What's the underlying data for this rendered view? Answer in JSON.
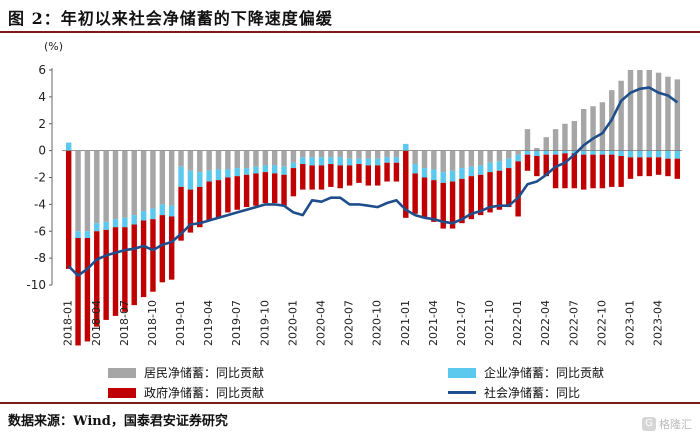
{
  "title": "图 2：年初以来社会净储蓄的下降速度偏缓",
  "source": "数据来源：Wind，国泰君安证券研究",
  "watermark": "格隆汇",
  "colors": {
    "household": "#a6a6a6",
    "enterprise": "#5bc8ee",
    "government": "#c00000",
    "social": "#1f4e8c"
  },
  "chart_data": {
    "type": "bar",
    "ylabel": "(%)",
    "ylim": [
      -10,
      6
    ],
    "yticks": [
      6,
      4,
      2,
      0,
      -2,
      -4,
      -6,
      -8,
      -10
    ],
    "xticklabels": [
      "2018-01",
      "2018-04",
      "2018-07",
      "2018-10",
      "2019-01",
      "2019-04",
      "2019-07",
      "2019-10",
      "2020-01",
      "2020-04",
      "2020-07",
      "2020-10",
      "2021-01",
      "2021-04",
      "2021-07",
      "2021-10",
      "2022-01",
      "2022-04",
      "2022-07",
      "2022-10",
      "2023-01",
      "2023-04"
    ],
    "categories": [
      "2018-01",
      "2018-02",
      "2018-03",
      "2018-04",
      "2018-05",
      "2018-06",
      "2018-07",
      "2018-08",
      "2018-09",
      "2018-10",
      "2018-11",
      "2018-12",
      "2019-01",
      "2019-02",
      "2019-03",
      "2019-04",
      "2019-05",
      "2019-06",
      "2019-07",
      "2019-08",
      "2019-09",
      "2019-10",
      "2019-11",
      "2019-12",
      "2020-01",
      "2020-02",
      "2020-03",
      "2020-04",
      "2020-05",
      "2020-06",
      "2020-07",
      "2020-08",
      "2020-09",
      "2020-10",
      "2020-11",
      "2020-12",
      "2021-01",
      "2021-02",
      "2021-03",
      "2021-04",
      "2021-05",
      "2021-06",
      "2021-07",
      "2021-08",
      "2021-09",
      "2021-10",
      "2021-11",
      "2021-12",
      "2022-01",
      "2022-02",
      "2022-03",
      "2022-04",
      "2022-05",
      "2022-06",
      "2022-07",
      "2022-08",
      "2022-09",
      "2022-10",
      "2022-11",
      "2022-12",
      "2023-01",
      "2023-02",
      "2023-03",
      "2023-04",
      "2023-05",
      "2023-06"
    ],
    "series": [
      {
        "name": "居民净储蓄：同比贡献",
        "type": "bar",
        "color": "#a6a6a6",
        "values": [
          0.0,
          -6.0,
          -6.0,
          -5.4,
          -5.3,
          -5.1,
          -5.0,
          -4.8,
          -4.5,
          -4.3,
          -4.0,
          -4.1,
          -1.2,
          -1.5,
          -1.6,
          -1.5,
          -1.4,
          -1.4,
          -1.3,
          -1.3,
          -1.2,
          -1.1,
          -1.1,
          -1.2,
          -0.9,
          -0.5,
          -0.5,
          -0.5,
          -0.5,
          -0.5,
          -0.6,
          -0.6,
          -0.6,
          -0.6,
          -0.5,
          -0.5,
          0.0,
          -1.0,
          -1.3,
          -1.4,
          -1.6,
          -1.5,
          -1.3,
          -1.2,
          -1.1,
          -0.9,
          -0.8,
          -0.6,
          -0.3,
          1.6,
          0.2,
          1.0,
          1.6,
          2.0,
          2.2,
          3.1,
          3.3,
          3.6,
          4.5,
          5.2,
          6.0,
          6.0,
          6.0,
          5.8,
          5.5,
          5.3
        ]
      },
      {
        "name": "企业净储蓄：同比贡献",
        "type": "bar",
        "color": "#5bc8ee",
        "values": [
          0.6,
          -0.5,
          -0.5,
          -0.6,
          -0.6,
          -0.6,
          -0.7,
          -0.7,
          -0.7,
          -0.8,
          -0.8,
          -0.8,
          -1.5,
          -1.4,
          -1.1,
          -0.8,
          -0.8,
          -0.6,
          -0.6,
          -0.5,
          -0.5,
          -0.5,
          -0.6,
          -0.6,
          -0.4,
          -0.5,
          -0.6,
          -0.6,
          -0.5,
          -0.6,
          -0.5,
          -0.4,
          -0.5,
          -0.5,
          -0.4,
          -0.4,
          0.5,
          -0.7,
          -0.7,
          -0.8,
          -0.8,
          -0.8,
          -0.8,
          -0.7,
          -0.7,
          -0.7,
          -0.7,
          -0.7,
          -0.5,
          -0.3,
          -0.4,
          -0.3,
          -0.3,
          -0.2,
          -0.2,
          -0.3,
          -0.3,
          -0.3,
          -0.3,
          -0.4,
          -0.5,
          -0.5,
          -0.5,
          -0.5,
          -0.6,
          -0.6
        ]
      },
      {
        "name": "政府净储蓄：同比贡献",
        "type": "bar",
        "color": "#c00000",
        "values": [
          -8.8,
          -8.0,
          -7.7,
          -7.1,
          -6.7,
          -6.6,
          -6.3,
          -6.0,
          -5.7,
          -5.4,
          -5.0,
          -4.7,
          -4.0,
          -3.2,
          -3.0,
          -2.9,
          -2.8,
          -2.6,
          -2.5,
          -2.4,
          -2.4,
          -2.3,
          -2.2,
          -2.3,
          -2.1,
          -1.9,
          -1.8,
          -1.8,
          -1.7,
          -1.7,
          -1.5,
          -1.4,
          -1.5,
          -1.5,
          -1.4,
          -1.4,
          -5.0,
          -3.0,
          -3.0,
          -3.1,
          -3.4,
          -3.5,
          -3.3,
          -3.2,
          -3.0,
          -3.0,
          -2.9,
          -2.9,
          -4.1,
          -1.2,
          -1.5,
          -1.6,
          -2.5,
          -2.6,
          -2.6,
          -2.6,
          -2.5,
          -2.5,
          -2.4,
          -2.3,
          -1.6,
          -1.4,
          -1.4,
          -1.3,
          -1.3,
          -1.5
        ]
      },
      {
        "name": "社会净储蓄：同比",
        "type": "line",
        "color": "#1f4e8c",
        "values": [
          -8.6,
          -9.3,
          -8.8,
          -8.1,
          -7.8,
          -7.6,
          -7.4,
          -7.3,
          -7.1,
          -7.4,
          -7.0,
          -6.8,
          -6.2,
          -5.5,
          -5.4,
          -5.2,
          -5.0,
          -4.8,
          -4.6,
          -4.4,
          -4.2,
          -4.0,
          -4.0,
          -4.1,
          -4.6,
          -4.8,
          -3.7,
          -3.8,
          -3.5,
          -3.5,
          -4.0,
          -4.0,
          -4.1,
          -4.2,
          -3.9,
          -3.7,
          -4.4,
          -4.8,
          -5.0,
          -5.1,
          -5.3,
          -5.4,
          -5.1,
          -4.7,
          -4.5,
          -4.2,
          -4.1,
          -4.1,
          -3.5,
          -2.5,
          -2.3,
          -1.8,
          -1.2,
          -0.9,
          -0.3,
          0.4,
          0.9,
          1.3,
          2.3,
          3.7,
          4.3,
          4.6,
          4.7,
          4.3,
          4.1,
          3.6
        ]
      }
    ]
  },
  "legend": [
    {
      "label": "居民净储蓄：同比贡献",
      "kind": "bar",
      "color": "#a6a6a6"
    },
    {
      "label": "企业净储蓄：同比贡献",
      "kind": "bar",
      "color": "#5bc8ee"
    },
    {
      "label": "政府净储蓄：同比贡献",
      "kind": "bar",
      "color": "#c00000"
    },
    {
      "label": "社会净储蓄：同比",
      "kind": "line",
      "color": "#1f4e8c"
    }
  ]
}
